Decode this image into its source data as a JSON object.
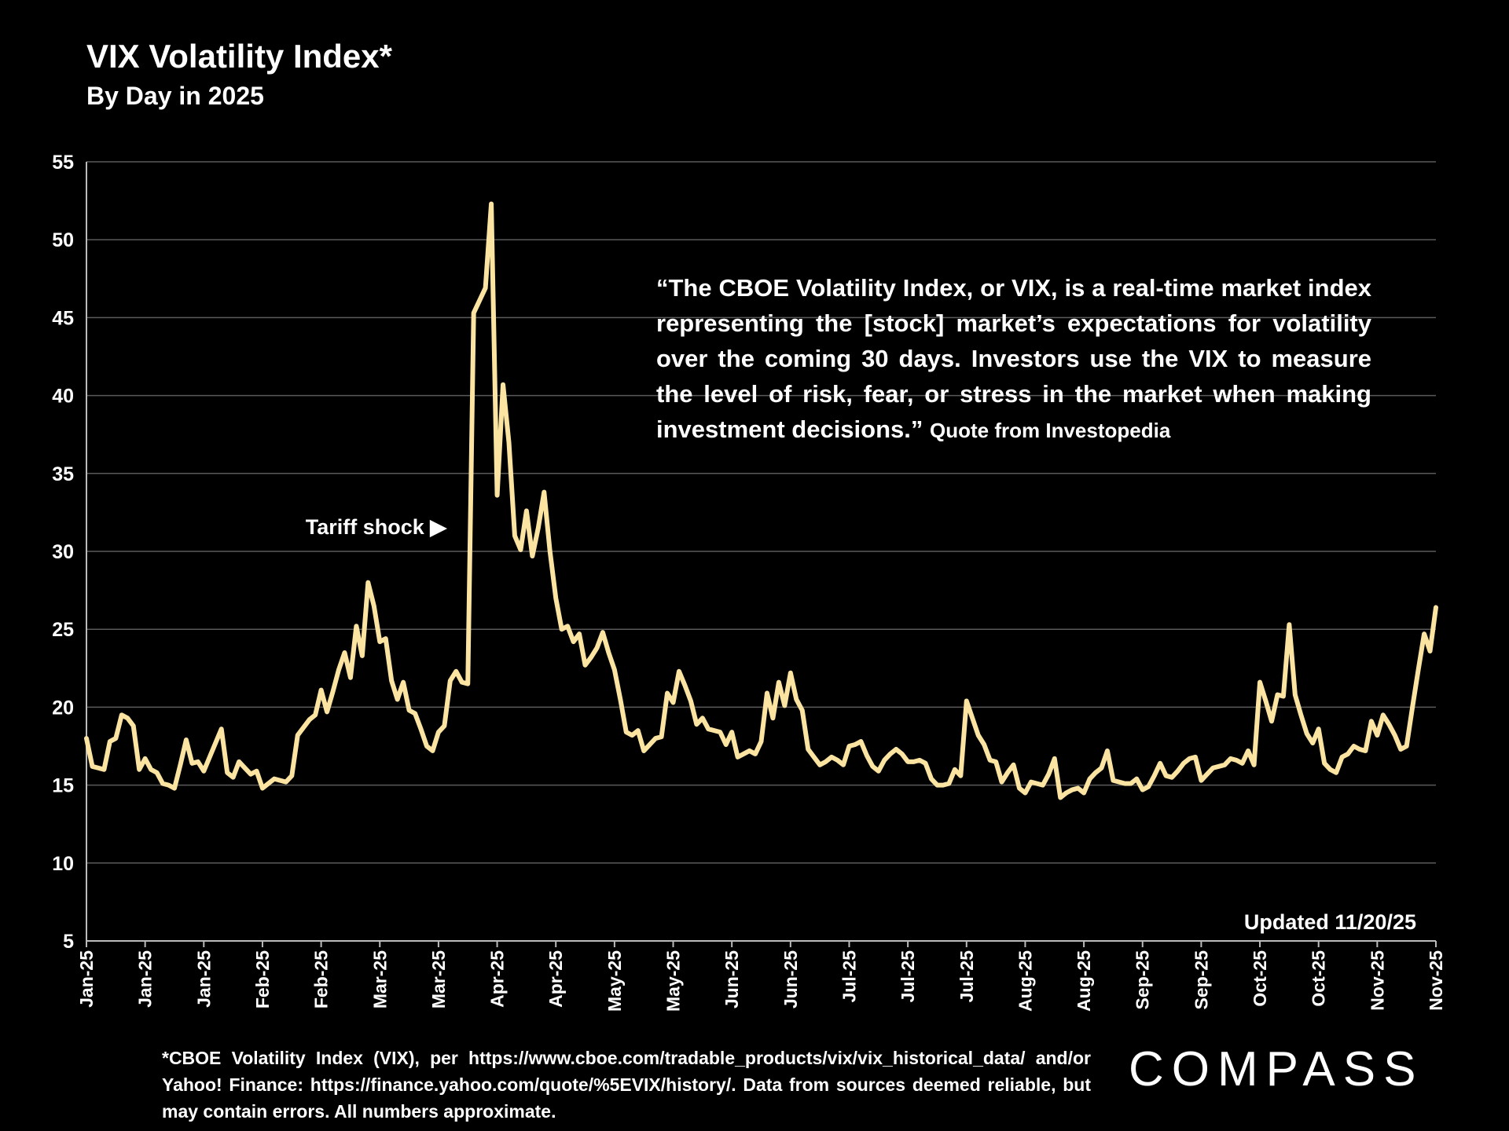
{
  "chart_data": {
    "type": "line",
    "title": "VIX Volatility Index*",
    "subtitle": "By Day in 2025",
    "quote": "“The CBOE Volatility Index, or VIX, is a real-time market index representing the [stock] market’s expectations for volatility over the coming 30 days. Investors use the VIX to measure the level of risk, fear, or stress in the market when making investment decisions.”",
    "quote_source": "Quote from Investopedia",
    "annotation": "Tariff shock ▶",
    "updated": "Updated 11/20/25",
    "footnote": "*CBOE Volatility Index (VIX), per https://www.cboe.com/tradable_products/vix/vix_historical_data/ and/or Yahoo! Finance: https://finance.yahoo.com/quote/%5EVIX/history/. Data from sources deemed reliable, but may contain errors. All numbers approximate.",
    "logo": "COMPASS",
    "color": "#fbe3a1",
    "grid": true,
    "ylim": [
      5,
      55
    ],
    "yticks": [
      5,
      10,
      15,
      20,
      25,
      30,
      35,
      40,
      45,
      50,
      55
    ],
    "categories": [
      "Jan-25",
      null,
      null,
      null,
      null,
      null,
      null,
      null,
      null,
      null,
      "Jan-25",
      null,
      null,
      null,
      null,
      null,
      null,
      null,
      null,
      null,
      "Jan-25",
      null,
      null,
      null,
      null,
      null,
      null,
      null,
      null,
      null,
      "Feb-25",
      null,
      null,
      null,
      null,
      null,
      null,
      null,
      null,
      null,
      "Feb-25",
      null,
      null,
      null,
      null,
      null,
      null,
      null,
      null,
      null,
      "Mar-25",
      null,
      null,
      null,
      null,
      null,
      null,
      null,
      null,
      null,
      "Mar-25",
      null,
      null,
      null,
      null,
      null,
      null,
      null,
      null,
      null,
      "Apr-25",
      null,
      null,
      null,
      null,
      null,
      null,
      null,
      null,
      null,
      "Apr-25",
      null,
      null,
      null,
      null,
      null,
      null,
      null,
      null,
      null,
      "May-25",
      null,
      null,
      null,
      null,
      null,
      null,
      null,
      null,
      null,
      "May-25",
      null,
      null,
      null,
      null,
      null,
      null,
      null,
      null,
      null,
      "Jun-25",
      null,
      null,
      null,
      null,
      null,
      null,
      null,
      null,
      null,
      "Jun-25",
      null,
      null,
      null,
      null,
      null,
      null,
      null,
      null,
      null,
      "Jul-25",
      null,
      null,
      null,
      null,
      null,
      null,
      null,
      null,
      null,
      "Jul-25",
      null,
      null,
      null,
      null,
      null,
      null,
      null,
      null,
      null,
      "Jul-25",
      null,
      null,
      null,
      null,
      null,
      null,
      null,
      null,
      null,
      "Aug-25",
      null,
      null,
      null,
      null,
      null,
      null,
      null,
      null,
      null,
      "Aug-25",
      null,
      null,
      null,
      null,
      null,
      null,
      null,
      null,
      null,
      "Sep-25",
      null,
      null,
      null,
      null,
      null,
      null,
      null,
      null,
      null,
      "Sep-25",
      null,
      null,
      null,
      null,
      null,
      null,
      null,
      null,
      null,
      "Oct-25",
      null,
      null,
      null,
      null,
      null,
      null,
      null,
      null,
      null,
      "Oct-25",
      null,
      null,
      null,
      null,
      null,
      null,
      null,
      null,
      null,
      "Nov-25",
      null,
      null,
      null,
      null,
      null,
      null,
      null,
      null,
      null,
      "Nov-25"
    ],
    "values": [
      18.0,
      16.2,
      16.1,
      16.0,
      17.8,
      18.0,
      19.5,
      19.3,
      18.8,
      16.0,
      16.7,
      16.0,
      15.8,
      15.1,
      15.0,
      14.8,
      16.3,
      17.9,
      16.4,
      16.5,
      15.9,
      16.8,
      17.7,
      18.6,
      15.8,
      15.5,
      16.5,
      16.1,
      15.7,
      15.9,
      14.8,
      15.1,
      15.4,
      15.3,
      15.2,
      15.6,
      18.2,
      18.7,
      19.2,
      19.5,
      21.1,
      19.7,
      21.0,
      22.4,
      23.5,
      21.9,
      25.2,
      23.3,
      28.0,
      26.5,
      24.2,
      24.4,
      21.7,
      20.5,
      21.6,
      19.8,
      19.6,
      18.6,
      17.5,
      17.2,
      18.4,
      18.8,
      21.7,
      22.3,
      21.6,
      21.5,
      45.3,
      46.1,
      46.9,
      52.3,
      33.6,
      40.7,
      37.0,
      31.0,
      30.1,
      32.6,
      29.7,
      31.5,
      33.8,
      30.0,
      27.0,
      25.0,
      25.2,
      24.2,
      24.7,
      22.7,
      23.2,
      23.8,
      24.8,
      23.5,
      22.4,
      20.5,
      18.4,
      18.2,
      18.5,
      17.2,
      17.6,
      18.0,
      18.1,
      20.9,
      20.3,
      22.3,
      21.4,
      20.4,
      18.9,
      19.3,
      18.6,
      18.5,
      18.4,
      17.6,
      18.4,
      16.8,
      17.0,
      17.2,
      17.0,
      17.8,
      20.9,
      19.3,
      21.6,
      20.1,
      22.2,
      20.5,
      19.8,
      17.3,
      16.8,
      16.3,
      16.5,
      16.8,
      16.6,
      16.3,
      17.5,
      17.6,
      17.8,
      16.9,
      16.2,
      15.9,
      16.6,
      17.0,
      17.3,
      17.0,
      16.5,
      16.5,
      16.6,
      16.4,
      15.4,
      15.0,
      15.0,
      15.1,
      16.0,
      15.6,
      20.4,
      19.3,
      18.2,
      17.6,
      16.6,
      16.5,
      15.2,
      15.8,
      16.3,
      14.8,
      14.5,
      15.2,
      15.1,
      15.0,
      15.7,
      16.7,
      14.2,
      14.5,
      14.7,
      14.8,
      14.5,
      15.4,
      15.8,
      16.1,
      17.2,
      15.3,
      15.2,
      15.1,
      15.1,
      15.4,
      14.7,
      14.9,
      15.6,
      16.4,
      15.6,
      15.5,
      15.9,
      16.4,
      16.7,
      16.8,
      15.3,
      15.7,
      16.1,
      16.2,
      16.3,
      16.7,
      16.6,
      16.4,
      17.2,
      16.3,
      21.6,
      20.4,
      19.1,
      20.8,
      20.7,
      25.3,
      20.8,
      19.5,
      18.3,
      17.7,
      18.6,
      16.4,
      16.0,
      15.8,
      16.8,
      17.0,
      17.5,
      17.3,
      17.2,
      19.1,
      18.2,
      19.5,
      18.9,
      18.2,
      17.3,
      17.5,
      20.0,
      22.4,
      24.7,
      23.6,
      26.4
    ]
  }
}
